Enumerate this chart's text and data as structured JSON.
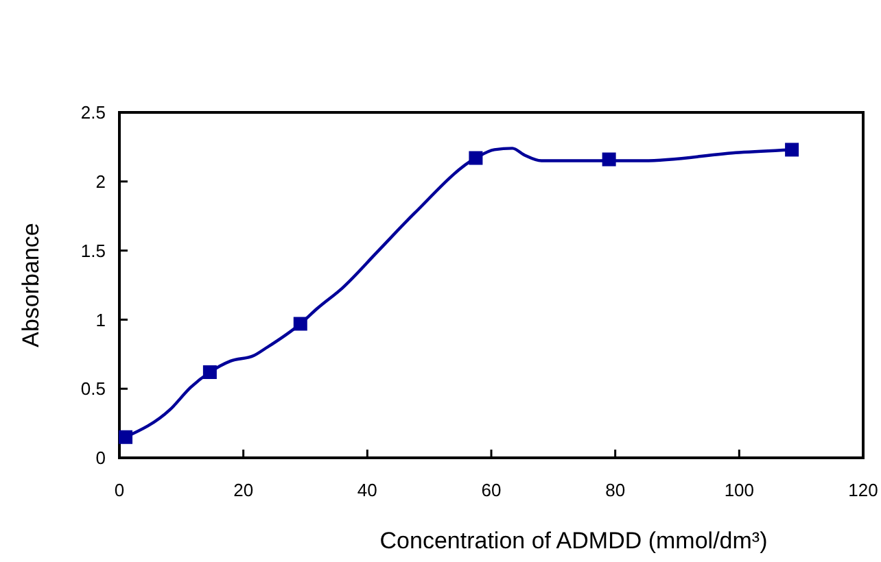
{
  "chart_data": {
    "type": "line",
    "xlabel": "Concentration of ADMDD (mmol/dm³)",
    "ylabel": "Absorbance",
    "xlim": [
      0,
      120
    ],
    "xticks": [
      0,
      20,
      40,
      60,
      80,
      100,
      120
    ],
    "ylim": [
      0,
      2.5
    ],
    "yticks": [
      0,
      0.5,
      1,
      1.5,
      2,
      2.5
    ],
    "grid": false,
    "series": [
      {
        "color": "#000099",
        "marker": "none",
        "x": [
          1,
          8.2,
          11.5,
          14.6,
          17.9,
          21.7,
          23.5,
          29.2,
          31.9,
          36,
          41.6,
          47.6,
          57.5,
          60.5,
          63.4,
          65.4,
          68.1,
          84.6,
          100,
          108.5
        ],
        "values": [
          0.15,
          0.35,
          0.51,
          0.62,
          0.7,
          0.74,
          0.79,
          0.97,
          1.08,
          1.23,
          1.49,
          1.77,
          2.17,
          2.23,
          2.24,
          2.19,
          2.15,
          2.15,
          2.21,
          2.23
        ]
      },
      {
        "type": "scatter",
        "color": "#000099",
        "marker": "square",
        "x": [
          1,
          14.6,
          29.2,
          57.5,
          79,
          108.5
        ],
        "values": [
          0.15,
          0.62,
          0.97,
          2.17,
          2.16,
          2.23
        ]
      }
    ]
  }
}
